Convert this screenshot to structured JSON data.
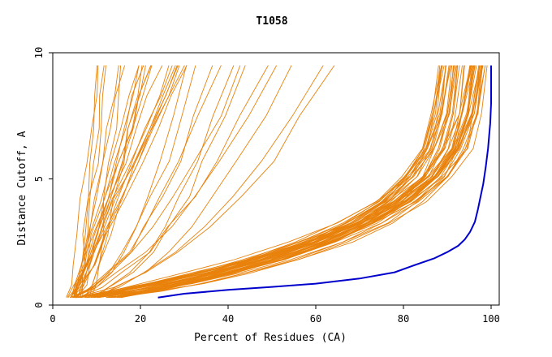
{
  "chart_data": {
    "type": "line",
    "title": "T1058",
    "xlabel": "Percent of Residues (CA)",
    "ylabel": "Distance Cutoff, A",
    "xlim": [
      0,
      100
    ],
    "ylim": [
      0,
      10
    ],
    "x_ticks": [
      "0",
      "20",
      "40",
      "60",
      "80",
      "100"
    ],
    "y_ticks": [
      "0",
      "5",
      "10"
    ],
    "grid": false,
    "legend": "none",
    "colors": {
      "models": "#e8820c",
      "highlight": "#0000cc",
      "axis": "#000000"
    },
    "highlight_series": {
      "x": [
        24,
        30,
        40,
        50,
        60,
        70,
        78,
        82,
        87,
        90,
        92.5,
        94,
        95.2,
        96.3,
        97,
        97.6,
        98.2,
        98.8,
        99.3,
        99.6,
        99.8,
        100,
        100
      ],
      "y": [
        0.3,
        0.45,
        0.6,
        0.72,
        0.85,
        1.05,
        1.3,
        1.55,
        1.85,
        2.1,
        2.35,
        2.6,
        2.9,
        3.3,
        3.8,
        4.3,
        4.8,
        5.5,
        6.2,
        6.8,
        7.2,
        8.0,
        9.5
      ]
    },
    "model_groups": [
      {
        "name": "",
        "count": 24,
        "x_start": [
          3,
          9
        ],
        "x_end": [
          10,
          31
        ],
        "x": [
          0,
          0.08,
          0.18,
          0.3,
          0.45,
          0.6,
          0.75,
          0.88,
          1.0
        ],
        "y": [
          0.3,
          0.8,
          1.6,
          2.8,
          4.2,
          5.6,
          7.0,
          8.3,
          9.5
        ]
      },
      {
        "name": "",
        "count": 12,
        "x_start": [
          4,
          12
        ],
        "x_end": [
          30,
          68
        ],
        "x": [
          0,
          0.12,
          0.25,
          0.38,
          0.5,
          0.62,
          0.74,
          0.87,
          1.0
        ],
        "y": [
          0.3,
          0.7,
          1.3,
          2.1,
          3.1,
          4.3,
          5.7,
          7.5,
          9.5
        ]
      },
      {
        "name": "",
        "count": 50,
        "x_start": [
          5,
          16
        ],
        "x_end": [
          88,
          100
        ],
        "x": [
          0,
          0.1,
          0.2,
          0.32,
          0.46,
          0.6,
          0.72,
          0.82,
          0.9,
          0.95,
          0.98,
          1.0
        ],
        "y": [
          0.3,
          0.55,
          0.85,
          1.25,
          1.8,
          2.5,
          3.25,
          4.1,
          5.1,
          6.2,
          7.6,
          9.5
        ]
      }
    ]
  }
}
